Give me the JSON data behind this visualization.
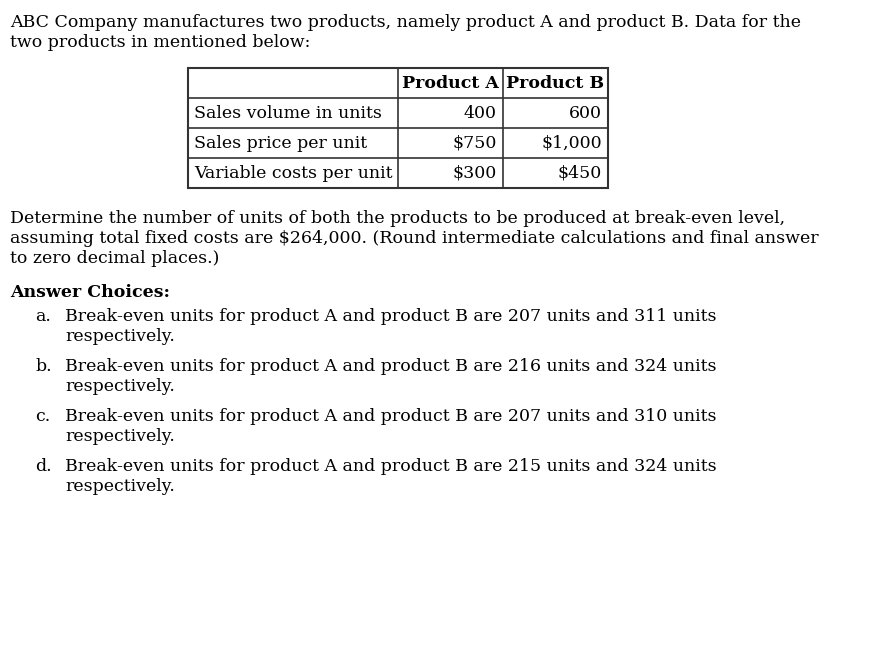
{
  "intro_text_line1": "ABC Company manufactures two products, namely product A and product B. Data for the",
  "intro_text_line2": "two products in mentioned below:",
  "table_headers": [
    "",
    "Product A",
    "Product B"
  ],
  "table_rows": [
    [
      "Sales volume in units",
      "400",
      "600"
    ],
    [
      "Sales price per unit",
      "$750",
      "$1,000"
    ],
    [
      "Variable costs per unit",
      "$300",
      "$450"
    ]
  ],
  "question_line1": "Determine the number of units of both the products to be produced at break-even level,",
  "question_line2": "assuming total fixed costs are $264,000. (Round intermediate calculations and final answer",
  "question_line3": "to zero decimal places.)",
  "answer_header": "Answer Choices:",
  "choice_labels": [
    "a.",
    "b.",
    "c.",
    "d."
  ],
  "choice_line1": [
    "Break-even units for product A and product B are 207 units and 311 units",
    "Break-even units for product A and product B are 216 units and 324 units",
    "Break-even units for product A and product B are 207 units and 310 units",
    "Break-even units for product A and product B are 215 units and 324 units"
  ],
  "choice_line2": "respectively.",
  "bg_color": "#ffffff",
  "text_color": "#000000",
  "table_border_color": "#333333",
  "font_size": 12.5,
  "bold_font_size": 12.5
}
